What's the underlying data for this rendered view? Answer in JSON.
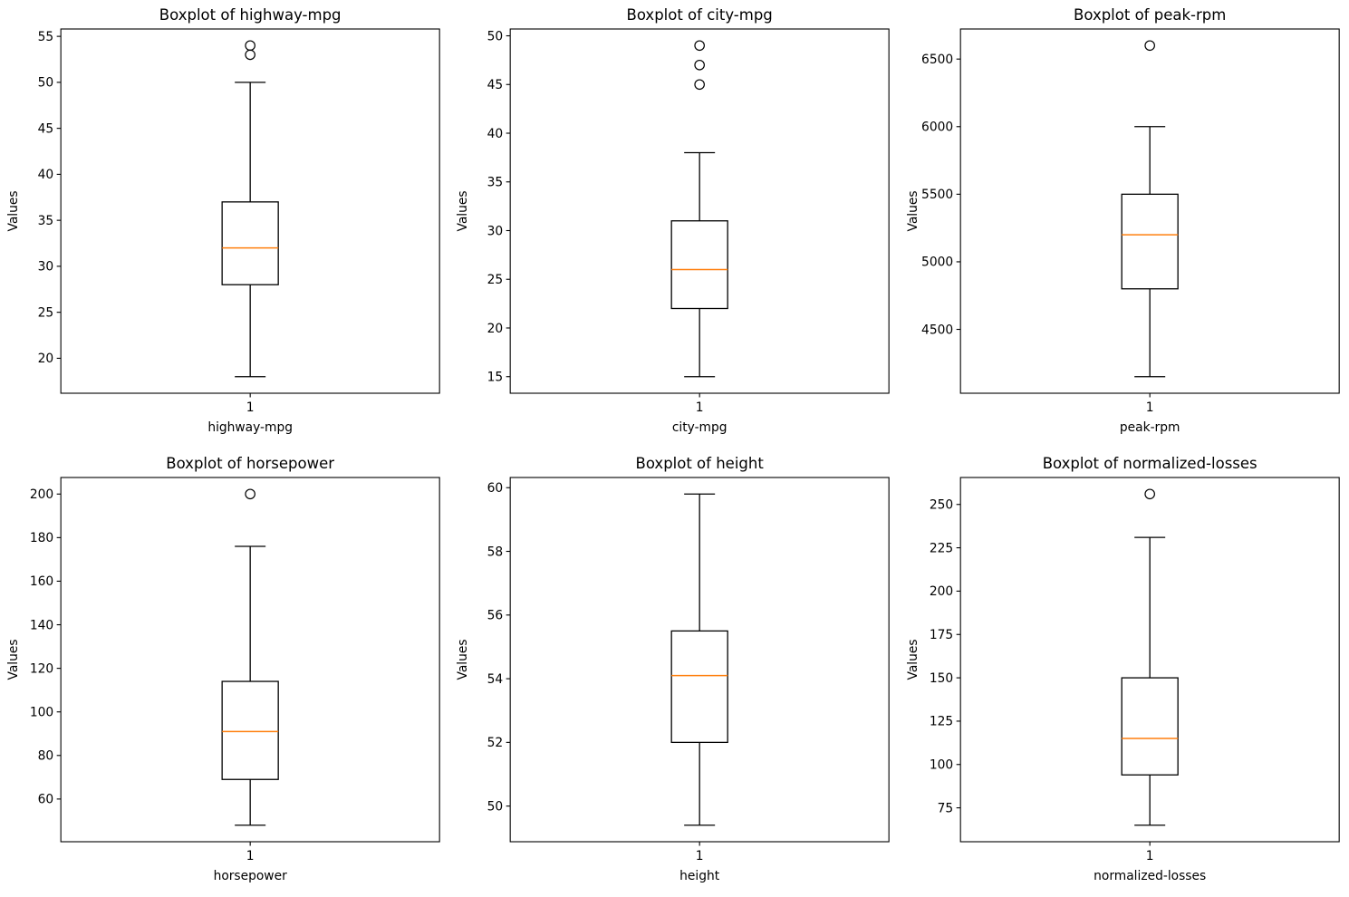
{
  "figure": {
    "background": "#ffffff",
    "line_color": "#000000",
    "median_color": "#ff7f0e",
    "rows": 2,
    "cols": 3
  },
  "chart_data": [
    {
      "type": "boxplot",
      "title": "Boxplot of highway-mpg",
      "xlabel": "highway-mpg",
      "ylabel": "Values",
      "xtick_label": "1",
      "yticks": [
        20,
        25,
        30,
        35,
        40,
        45,
        50,
        55
      ],
      "ylim": [
        16.2,
        55.8
      ],
      "stats": {
        "whisker_low": 18,
        "q1": 28,
        "median": 32,
        "q3": 37,
        "whisker_high": 50,
        "outliers": [
          53,
          54
        ]
      }
    },
    {
      "type": "boxplot",
      "title": "Boxplot of city-mpg",
      "xlabel": "city-mpg",
      "ylabel": "Values",
      "xtick_label": "1",
      "yticks": [
        15,
        20,
        25,
        30,
        35,
        40,
        45,
        50
      ],
      "ylim": [
        13.3,
        50.7
      ],
      "stats": {
        "whisker_low": 15,
        "q1": 22,
        "median": 26,
        "q3": 31,
        "whisker_high": 38,
        "outliers": [
          45,
          47,
          49
        ]
      }
    },
    {
      "type": "boxplot",
      "title": "Boxplot of peak-rpm",
      "xlabel": "peak-rpm",
      "ylabel": "Values",
      "xtick_label": "1",
      "yticks": [
        4500,
        5000,
        5500,
        6000,
        6500
      ],
      "ylim": [
        4027.5,
        6722.5
      ],
      "stats": {
        "whisker_low": 4150,
        "q1": 4800,
        "median": 5200,
        "q3": 5500,
        "whisker_high": 6000,
        "outliers": [
          6600
        ]
      }
    },
    {
      "type": "boxplot",
      "title": "Boxplot of horsepower",
      "xlabel": "horsepower",
      "ylabel": "Values",
      "xtick_label": "1",
      "yticks": [
        60,
        80,
        100,
        120,
        140,
        160,
        180,
        200
      ],
      "ylim": [
        40.4,
        207.6
      ],
      "stats": {
        "whisker_low": 48,
        "q1": 69,
        "median": 91,
        "q3": 114,
        "whisker_high": 176,
        "outliers": [
          200
        ]
      }
    },
    {
      "type": "boxplot",
      "title": "Boxplot of height",
      "xlabel": "height",
      "ylabel": "Values",
      "xtick_label": "1",
      "yticks": [
        50,
        52,
        54,
        56,
        58,
        60
      ],
      "ylim": [
        48.88,
        60.32
      ],
      "stats": {
        "whisker_low": 49.4,
        "q1": 52.0,
        "median": 54.1,
        "q3": 55.5,
        "whisker_high": 59.8,
        "outliers": []
      }
    },
    {
      "type": "boxplot",
      "title": "Boxplot of normalized-losses",
      "xlabel": "normalized-losses",
      "ylabel": "Values",
      "xtick_label": "1",
      "yticks": [
        75,
        100,
        125,
        150,
        175,
        200,
        225,
        250
      ],
      "ylim": [
        55.45,
        265.55
      ],
      "stats": {
        "whisker_low": 65,
        "q1": 94,
        "median": 115,
        "q3": 150,
        "whisker_high": 231,
        "outliers": [
          256
        ]
      }
    }
  ]
}
